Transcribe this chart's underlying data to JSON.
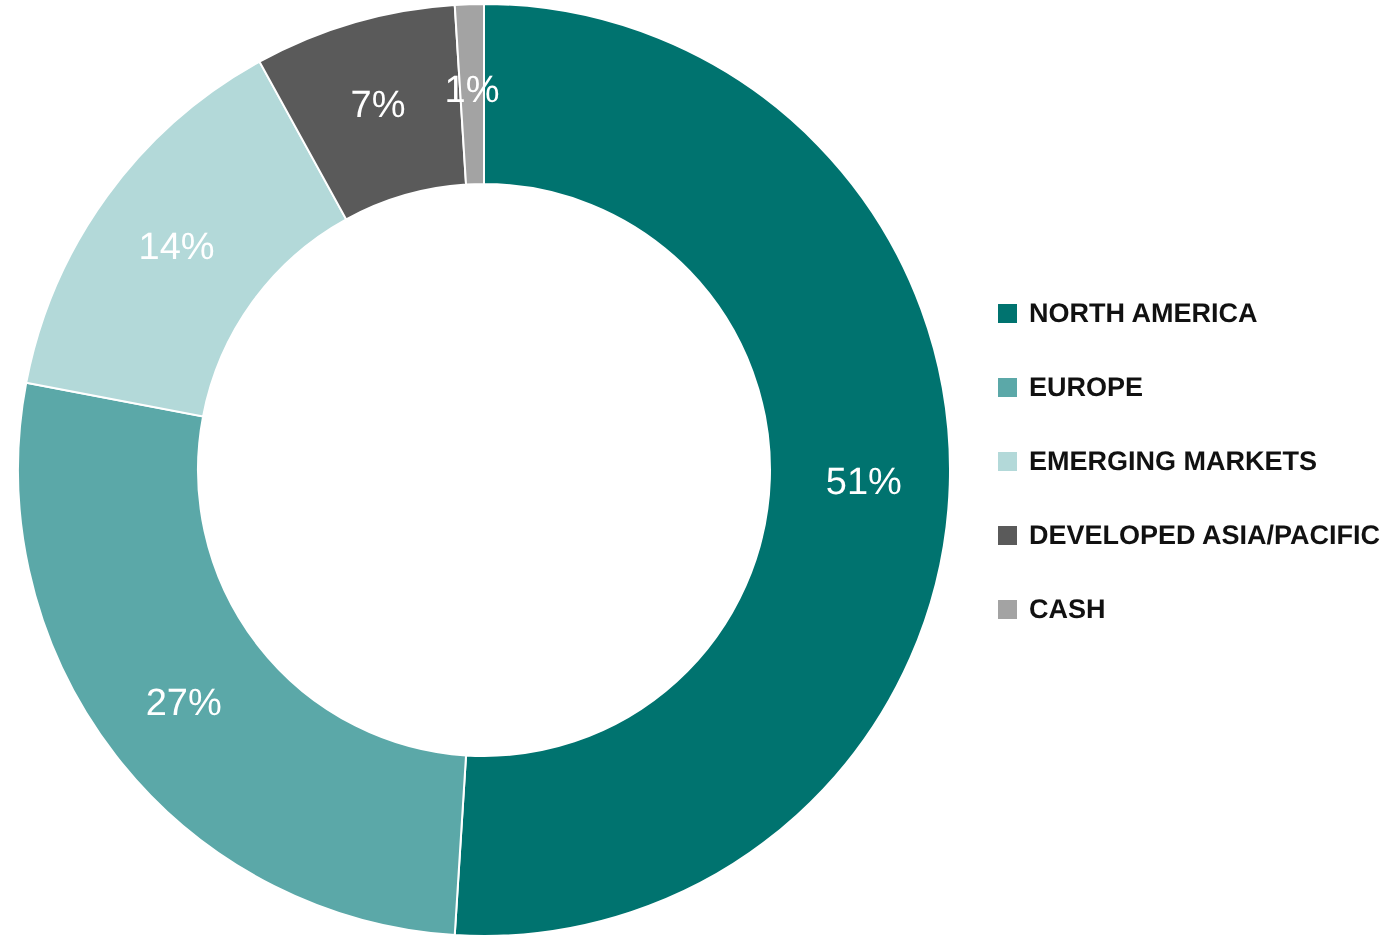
{
  "chart_data": {
    "type": "donut",
    "categories": [
      "NORTH AMERICA",
      "EUROPE",
      "EMERGING MARKETS",
      "DEVELOPED ASIA/PACIFIC",
      "CASH"
    ],
    "values": [
      51,
      27,
      14,
      7,
      1
    ],
    "colors": [
      "#00736f",
      "#5ba8a8",
      "#b3d9d9",
      "#5a5a5a",
      "#a3a3a3"
    ],
    "value_labels": [
      "51%",
      "27%",
      "14%",
      "7%",
      "1%"
    ],
    "legend": "right"
  }
}
